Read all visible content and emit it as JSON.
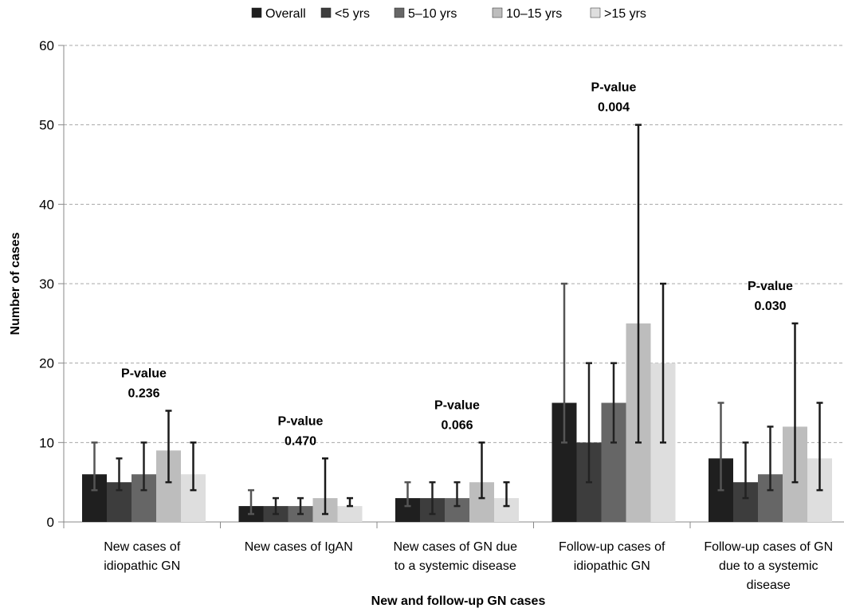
{
  "chart_data": {
    "type": "bar",
    "title": "",
    "xlabel": "New and follow-up GN cases",
    "ylabel": "Number of cases",
    "ylim": [
      0,
      60
    ],
    "yticks": [
      0,
      10,
      20,
      30,
      40,
      50,
      60
    ],
    "grid": true,
    "legend_position": "top",
    "categories": [
      [
        "New cases of",
        "idiopathic GN"
      ],
      [
        "New cases of IgAN"
      ],
      [
        "New cases of GN due",
        "to a systemic disease"
      ],
      [
        "Follow-up cases of",
        "idiopathic GN"
      ],
      [
        "Follow-up cases of GN",
        "due to a systemic",
        "disease"
      ]
    ],
    "series": [
      {
        "name": "Overall",
        "color": "#1f1f1f",
        "values": [
          6,
          2,
          3,
          15,
          8
        ],
        "err_low": [
          4,
          1,
          2,
          10,
          4
        ],
        "err_high": [
          10,
          4,
          5,
          30,
          15
        ]
      },
      {
        "name": "<5 yrs",
        "color": "#3d3d3d",
        "values": [
          5,
          2,
          3,
          10,
          5
        ],
        "err_low": [
          4,
          1,
          1,
          5,
          3
        ],
        "err_high": [
          8,
          3,
          5,
          20,
          10
        ]
      },
      {
        "name": "5–10 yrs",
        "color": "#666666",
        "values": [
          6,
          2,
          3,
          15,
          6
        ],
        "err_low": [
          4,
          1,
          2,
          10,
          4
        ],
        "err_high": [
          10,
          3,
          5,
          20,
          12
        ]
      },
      {
        "name": "10–15 yrs",
        "color": "#bdbdbd",
        "values": [
          9,
          3,
          5,
          25,
          12
        ],
        "err_low": [
          5,
          1,
          3,
          10,
          5
        ],
        "err_high": [
          14,
          8,
          10,
          50,
          25
        ]
      },
      {
        "name": ">15 yrs",
        "color": "#dedede",
        "values": [
          6,
          2,
          3,
          20,
          8
        ],
        "err_low": [
          4,
          2,
          2,
          10,
          4
        ],
        "err_high": [
          10,
          3,
          5,
          30,
          15
        ]
      }
    ],
    "annotations": [
      {
        "category_index": 0,
        "label": "P-value",
        "value": "0.236"
      },
      {
        "category_index": 1,
        "label": "P-value",
        "value": "0.470"
      },
      {
        "category_index": 2,
        "label": "P-value",
        "value": "0.066"
      },
      {
        "category_index": 3,
        "label": "P-value",
        "value": "0.004"
      },
      {
        "category_index": 4,
        "label": "P-value",
        "value": "0.030"
      }
    ]
  }
}
